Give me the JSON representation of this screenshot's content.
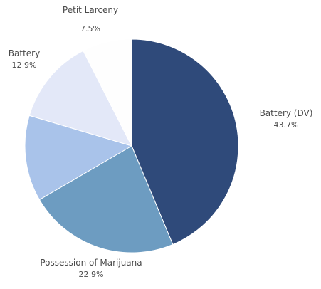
{
  "chart_data": {
    "type": "pie",
    "title": "",
    "start_angle_deg": 0,
    "direction": "clockwise",
    "slices": [
      {
        "name": "Battery (DV)",
        "value": 43.7,
        "label": "43.7%",
        "color": "#2f4a7a"
      },
      {
        "name": "Possession of Marijuana",
        "value": 22.9,
        "label": "22 9%",
        "color": "#6d9cc1"
      },
      {
        "name": "",
        "value": 13.0,
        "label": "",
        "color": "#a9c3ea"
      },
      {
        "name": "Battery",
        "value": 12.9,
        "label": "12 9%",
        "color": "#e3e8f8"
      },
      {
        "name": "Petit Larceny",
        "value": 7.5,
        "label": "7.5%",
        "color": "#fefefe"
      }
    ]
  }
}
